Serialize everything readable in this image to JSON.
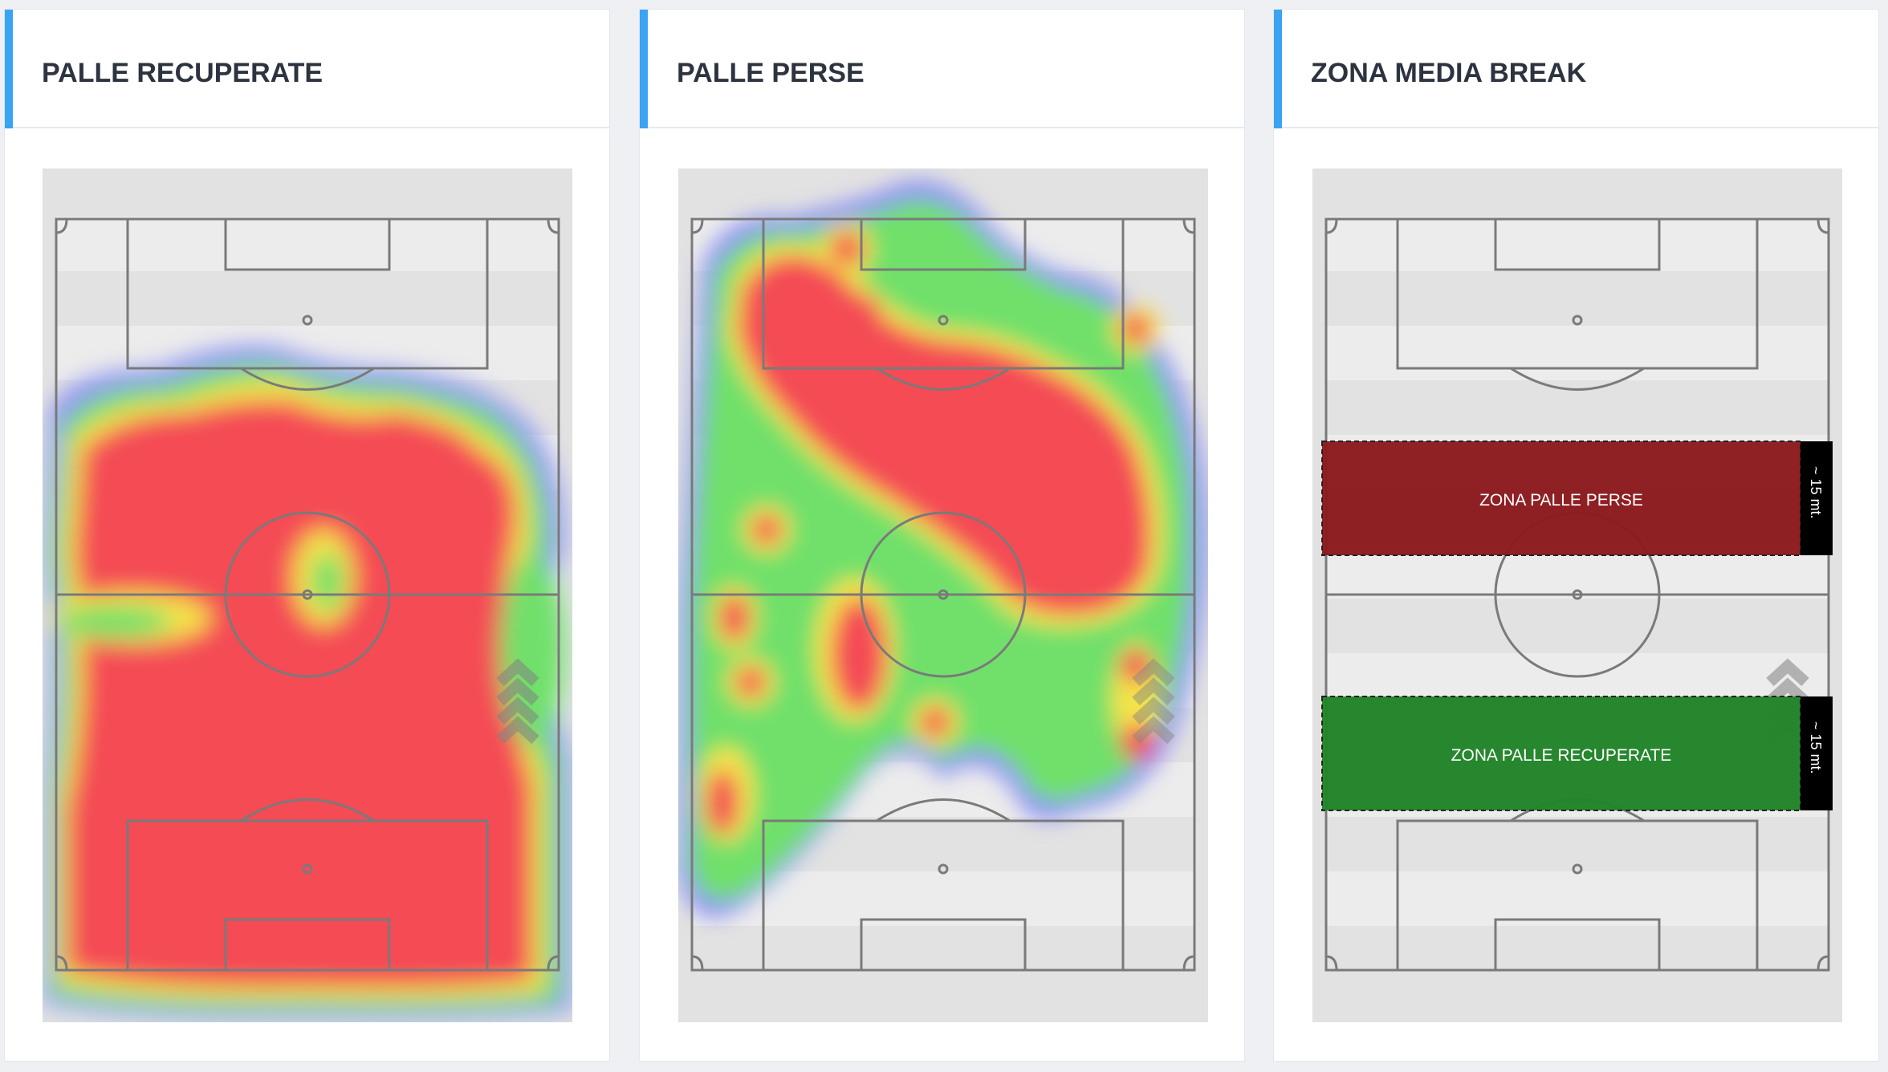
{
  "panels": [
    {
      "title": "PALLE RECUPERATE",
      "heatmap": "recovered"
    },
    {
      "title": "PALLE PERSE",
      "heatmap": "lost"
    },
    {
      "title": "ZONA MEDIA BREAK",
      "zones": {
        "lost_label": "ZONA PALLE PERSE",
        "recovered_label": "ZONA PALLE RECUPERATE",
        "distance_label": "~ 15 mt."
      }
    }
  ],
  "colors": {
    "accent": "#3aa3f2",
    "zone_lost": "#8b1a1e",
    "zone_recovered": "#2a8a2a",
    "heat_high": "#f44b55",
    "heat_mid": "#f5e34a",
    "heat_low": "#6fe06a",
    "heat_edge": "#8f8ff5"
  },
  "icons": [
    "direction-chevrons-icon"
  ]
}
